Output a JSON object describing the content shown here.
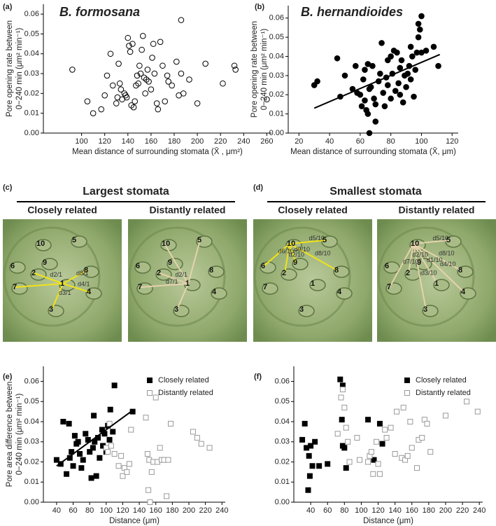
{
  "chart_data": [
    {
      "type": "scatter",
      "panel_label": "(a)",
      "title": "B. formosana",
      "xlabel": "Mean distance of surrounding stomata (X̄ , μm²)",
      "ylabel": [
        "Pore opening rate between",
        "0−240 min (μm² min⁻¹)"
      ],
      "xlim": [
        67,
        264
      ],
      "ylim": [
        0,
        0.065
      ],
      "xticks": [
        100,
        120,
        140,
        160,
        180,
        200,
        220,
        240,
        260
      ],
      "yticks": [
        {
          "value": 0,
          "label": "0.00"
        },
        0.01,
        0.02,
        0.03,
        0.04,
        0.05,
        0.06
      ],
      "series": [
        {
          "marker": "circle",
          "filled": false,
          "color": "#000000",
          "x": [
            92,
            105,
            110,
            117,
            120,
            122,
            125,
            127,
            130,
            131,
            132,
            133,
            134,
            135,
            137,
            138,
            139,
            140,
            141,
            142,
            143,
            144,
            145,
            146,
            147,
            148,
            149,
            150,
            151,
            152,
            153,
            154,
            155,
            156,
            157,
            158,
            160,
            161,
            162,
            163,
            165,
            166,
            168,
            170,
            172,
            174,
            175,
            178,
            182,
            184,
            186,
            186,
            188,
            193,
            200,
            207,
            222,
            232,
            233,
            260
          ],
          "y": [
            0.032,
            0.016,
            0.01,
            0.012,
            0.019,
            0.029,
            0.04,
            0.024,
            0.015,
            0.018,
            0.035,
            0.025,
            0.022,
            0.017,
            0.02,
            0.019,
            0.018,
            0.048,
            0.044,
            0.041,
            0.014,
            0.045,
            0.013,
            0.016,
            0.024,
            0.029,
            0.025,
            0.034,
            0.03,
            0.042,
            0.049,
            0.028,
            0.02,
            0.027,
            0.032,
            0.026,
            0.022,
            0.038,
            0.045,
            0.03,
            0.015,
            0.012,
            0.046,
            0.034,
            0.016,
            0.029,
            0.026,
            0.024,
            0.036,
            0.019,
            0.057,
            0.03,
            0.02,
            0.027,
            0.015,
            0.035,
            0.025,
            0.034,
            0.032,
            0.017
          ]
        }
      ]
    },
    {
      "type": "scatter",
      "panel_label": "(b)",
      "title": "B. hernandioides",
      "xlabel": "Mean distance of surrounding stomata (X̄, μm)",
      "ylabel": [
        "Pore opening rate between",
        "0−240 min (μm² min⁻¹)"
      ],
      "xlim": [
        13,
        124
      ],
      "ylim": [
        0,
        0.0665
      ],
      "xticks": [
        20,
        40,
        60,
        80,
        100,
        120
      ],
      "yticks": [
        {
          "value": 0,
          "label": "0.00"
        },
        0.01,
        0.02,
        0.03,
        0.04,
        0.05,
        0.06
      ],
      "trend": {
        "x": [
          30,
          112
        ],
        "y": [
          0.013,
          0.041
        ]
      },
      "series": [
        {
          "marker": "circle",
          "filled": true,
          "color": "#000000",
          "x": [
            30,
            32,
            45,
            47,
            50,
            55,
            57,
            58,
            60,
            61,
            62,
            63,
            63,
            64,
            65,
            65,
            66,
            66,
            67,
            68,
            69,
            70,
            70,
            72,
            73,
            74,
            75,
            76,
            77,
            78,
            78,
            80,
            80,
            81,
            82,
            83,
            84,
            85,
            86,
            86,
            87,
            88,
            89,
            90,
            91,
            92,
            93,
            93,
            94,
            95,
            96,
            97,
            98,
            98,
            99,
            100,
            100,
            103,
            108,
            111
          ],
          "y": [
            0.025,
            0.027,
            0.039,
            0.019,
            0.03,
            0.023,
            0.035,
            0.021,
            0.02,
            0.014,
            0.028,
            0.033,
            0.017,
            0.012,
            0.036,
            0.01,
            0.023,
            0.0,
            0.024,
            0.035,
            0.018,
            0.006,
            0.015,
            0.027,
            0.031,
            0.047,
            0.021,
            0.014,
            0.029,
            0.038,
            0.025,
            0.04,
            0.018,
            0.031,
            0.043,
            0.022,
            0.042,
            0.026,
            0.02,
            0.034,
            0.038,
            0.016,
            0.03,
            0.024,
            0.031,
            0.035,
            0.028,
            0.045,
            0.04,
            0.019,
            0.033,
            0.042,
            0.05,
            0.057,
            0.054,
            0.042,
            0.061,
            0.043,
            0.045,
            0.035
          ]
        }
      ]
    },
    {
      "type": "scatter",
      "panel_label": "(e)",
      "xlabel": "Distance (μm)",
      "ylabel": [
        "Pore area difference between",
        "0−240 min (μm² min⁻¹)"
      ],
      "xlim": [
        24,
        244
      ],
      "ylim": [
        0,
        0.0675
      ],
      "xticks": [
        40,
        60,
        80,
        100,
        120,
        140,
        160,
        180,
        200,
        220,
        240
      ],
      "yticks": [
        {
          "value": 0,
          "label": "0.00"
        },
        0.01,
        0.02,
        0.03,
        0.04,
        0.05,
        0.06
      ],
      "legend": "upper right",
      "trend": {
        "x": [
          40,
          130
        ],
        "y": [
          0.018,
          0.045
        ]
      },
      "series": [
        {
          "name": "Closely related",
          "marker": "square",
          "filled": true,
          "color": "#000000",
          "x": [
            40,
            45,
            48,
            52,
            55,
            56,
            58,
            60,
            62,
            64,
            66,
            68,
            70,
            72,
            75,
            78,
            80,
            82,
            84,
            85,
            86,
            88,
            90,
            92,
            95,
            96,
            98,
            100,
            102,
            104,
            105,
            108,
            110,
            132
          ],
          "y": [
            0.021,
            0.019,
            0.04,
            0.014,
            0.039,
            0.022,
            0.025,
            0.018,
            0.033,
            0.029,
            0.03,
            0.024,
            0.017,
            0.021,
            0.034,
            0.031,
            0.025,
            0.012,
            0.027,
            0.043,
            0.03,
            0.013,
            0.032,
            0.022,
            0.036,
            0.028,
            0.034,
            0.025,
            0.038,
            0.031,
            0.046,
            0.035,
            0.058,
            0.045
          ]
        },
        {
          "name": "Distantly related",
          "marker": "square",
          "filled": false,
          "color": "#999999",
          "x": [
            100,
            102,
            104,
            106,
            110,
            115,
            118,
            120,
            122,
            125,
            128,
            130,
            148,
            150,
            151,
            152,
            153,
            155,
            157,
            160,
            162,
            165,
            167,
            170,
            173,
            175,
            178,
            205,
            210,
            215,
            225
          ],
          "y": [
            0.027,
            0.025,
            0.039,
            0.028,
            0.024,
            0.018,
            0.023,
            0.013,
            0.017,
            0.015,
            0.019,
            0.036,
            0.042,
            0.024,
            0.006,
            0.021,
            0.0,
            0.015,
            0.02,
            0.052,
            0.02,
            0.027,
            0.021,
            0.021,
            0.003,
            0.021,
            0.039,
            0.035,
            0.032,
            0.029,
            0.027
          ]
        }
      ]
    },
    {
      "type": "scatter",
      "panel_label": "(f)",
      "xlabel": "Distance (μm)",
      "xlim": [
        20,
        244
      ],
      "ylim": [
        0,
        0.0675
      ],
      "xticks": [
        40,
        60,
        80,
        100,
        120,
        140,
        160,
        180,
        200,
        220,
        240
      ],
      "yticks": [
        {
          "value": 0,
          "label": "0.00"
        },
        0.01,
        0.02,
        0.03,
        0.04,
        0.05,
        0.06
      ],
      "legend": "upper right",
      "series": [
        {
          "name": "Closely related",
          "marker": "square",
          "filled": true,
          "color": "#000000",
          "x": [
            30,
            33,
            35,
            37,
            38,
            39,
            40,
            42,
            45,
            50,
            60,
            75,
            77,
            78,
            78,
            80,
            82,
            108,
            115,
            122,
            125
          ],
          "y": [
            0.031,
            0.039,
            0.027,
            0.006,
            0.023,
            0.013,
            0.028,
            0.018,
            0.03,
            0.018,
            0.019,
            0.061,
            0.041,
            0.058,
            0.028,
            0.027,
            0.017,
            0.041,
            0.021,
            0.039,
            0.029
          ]
        },
        {
          "name": "Distantly related",
          "marker": "square",
          "filled": false,
          "color": "#999999",
          "x": [
            72,
            76,
            78,
            80,
            82,
            84,
            86,
            95,
            98,
            108,
            110,
            112,
            114,
            118,
            120,
            122,
            128,
            130,
            135,
            140,
            142,
            148,
            150,
            152,
            155,
            158,
            160,
            166,
            168,
            172,
            175,
            178,
            182,
            200,
            225,
            238
          ],
          "y": [
            0.034,
            0.052,
            0.056,
            0.047,
            0.037,
            0.03,
            0.02,
            0.032,
            0.021,
            0.02,
            0.023,
            0.025,
            0.014,
            0.03,
            0.019,
            0.014,
            0.036,
            0.032,
            0.037,
            0.024,
            0.045,
            0.022,
            0.047,
            0.021,
            0.023,
            0.04,
            0.027,
            0.017,
            0.031,
            0.032,
            0.041,
            0.039,
            0.025,
            0.043,
            0.05,
            0.045
          ]
        }
      ]
    }
  ],
  "micrographs": [
    {
      "panel_label": "(c)",
      "heading": "Largest stomata",
      "images": [
        {
          "title": "Closely related",
          "stomata": [
            1,
            2,
            3,
            4,
            5,
            6,
            7,
            8,
            9,
            10
          ],
          "distances": [
            "d8/1",
            "d4/1",
            "d2/1",
            "d3/1"
          ]
        },
        {
          "title": "Distantly related",
          "stomata": [
            1,
            2,
            3,
            4,
            5,
            6,
            7,
            8,
            9,
            10
          ],
          "distances": [
            "d2/1",
            "d7/1"
          ]
        }
      ]
    },
    {
      "panel_label": "(d)",
      "heading": "Smallest stomata",
      "images": [
        {
          "title": "Closely related",
          "stomata": [
            1,
            2,
            3,
            4,
            5,
            6,
            7,
            8,
            9,
            10
          ],
          "distances": [
            "d8/10",
            "d6/10",
            "d9/10",
            "d2/10",
            "d5/10"
          ]
        },
        {
          "title": "Distantly related",
          "stomata": [
            1,
            2,
            3,
            4,
            5,
            6,
            7,
            8,
            9,
            10
          ],
          "distances": [
            "d7/10",
            "d5/10",
            "d2/10",
            "d1/10",
            "d4/10",
            "d3/10",
            "d8/10"
          ]
        }
      ]
    }
  ]
}
